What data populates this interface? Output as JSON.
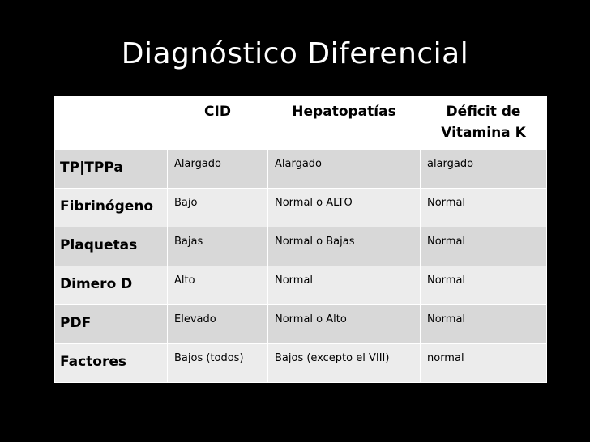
{
  "slide": {
    "title": "Diagnóstico Diferencial"
  },
  "table": {
    "headers": [
      "",
      "CID",
      "Hepatopatías",
      "Déficit de Vitamina K"
    ],
    "rows": [
      [
        "TP|TPPa",
        "Alargado",
        "Alargado",
        "alargado"
      ],
      [
        "Fibrinógeno",
        "Bajo",
        "Normal o ALTO",
        "Normal"
      ],
      [
        "Plaquetas",
        "Bajas",
        "Normal o Bajas",
        "Normal"
      ],
      [
        "Dimero D",
        "Alto",
        "Normal",
        "Normal"
      ],
      [
        "PDF",
        "Elevado",
        "Normal o Alto",
        "Normal"
      ],
      [
        "Factores",
        "Bajos (todos)",
        "Bajos (excepto el VIII)",
        "normal"
      ]
    ]
  },
  "colors": {
    "background": "#000000",
    "title": "#ffffff",
    "header_fill": "#ffffff",
    "row_fill_odd": "#d8d8d8",
    "row_fill_even": "#ececec",
    "border": "#ffffff"
  }
}
